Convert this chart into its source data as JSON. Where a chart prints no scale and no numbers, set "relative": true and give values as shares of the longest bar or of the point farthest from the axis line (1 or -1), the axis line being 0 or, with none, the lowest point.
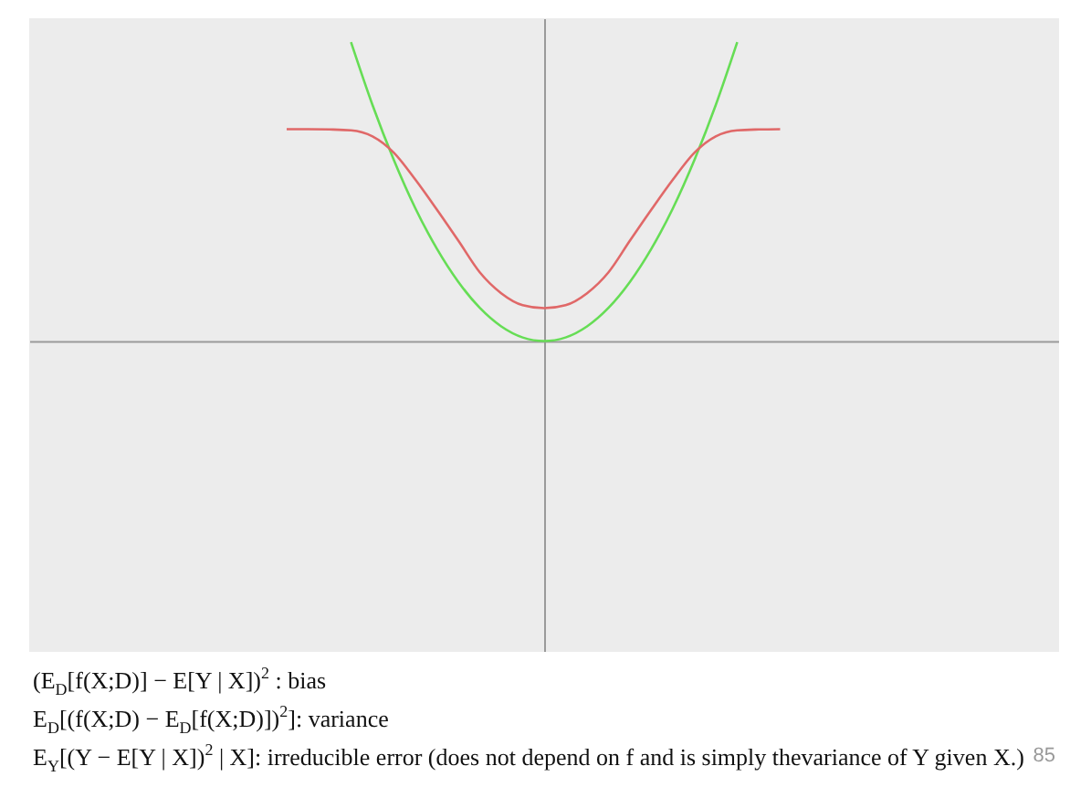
{
  "chart_data": {
    "type": "line",
    "relative": true,
    "tick_labels": false,
    "categories": [
      null,
      null,
      null,
      null,
      null,
      null,
      null,
      null,
      null,
      null,
      null,
      null,
      null,
      null,
      null,
      null,
      null,
      null,
      null,
      null,
      null,
      null,
      null,
      null,
      null,
      null,
      null,
      null,
      null,
      null,
      null,
      null,
      null,
      null,
      null,
      null,
      null,
      null,
      null,
      null,
      null,
      null,
      null,
      null,
      null,
      null,
      null,
      null,
      null
    ],
    "series": [
      {
        "color": "#66dd55",
        "values": [
          null,
          null,
          null,
          null,
          null,
          null,
          null,
          null,
          null,
          null,
          null,
          null,
          null,
          null,
          null,
          1,
          0.79,
          0.605,
          0.444,
          0.309,
          0.198,
          0.111,
          0.049,
          0.012,
          0,
          0.012,
          0.049,
          0.111,
          0.198,
          0.309,
          0.444,
          0.605,
          0.79,
          1,
          null,
          null,
          null,
          null,
          null,
          null,
          null,
          null,
          null,
          null,
          null,
          null,
          null,
          null,
          null
        ]
      },
      {
        "color": "#e06868",
        "values": [
          null,
          null,
          null,
          null,
          null,
          null,
          null,
          null,
          null,
          null,
          null,
          null,
          0.709,
          0.709,
          0.708,
          0.705,
          0.685,
          0.63,
          0.54,
          0.44,
          0.336,
          0.23,
          0.16,
          0.12,
          0.11,
          0.12,
          0.16,
          0.23,
          0.336,
          0.44,
          0.54,
          0.63,
          0.685,
          0.705,
          0.708,
          0.709,
          null,
          null,
          null,
          null,
          null,
          null,
          null,
          null,
          null,
          null,
          null,
          null,
          null
        ]
      }
    ],
    "annotations": [
      "(E$_{D}$[f(X;D)] − E[Y | X])$^{2}$ : bias",
      "E$_{D}$[(f(X;D) − E$_{D}$[f(X;D)])$^{2}$]: variance",
      "E$_{Y}$[(Y − E[Y | X])$^{2}$ | X]: irreducible error (does not depend on f and is simply thevariance of Y given X.)",
      "85"
    ]
  }
}
